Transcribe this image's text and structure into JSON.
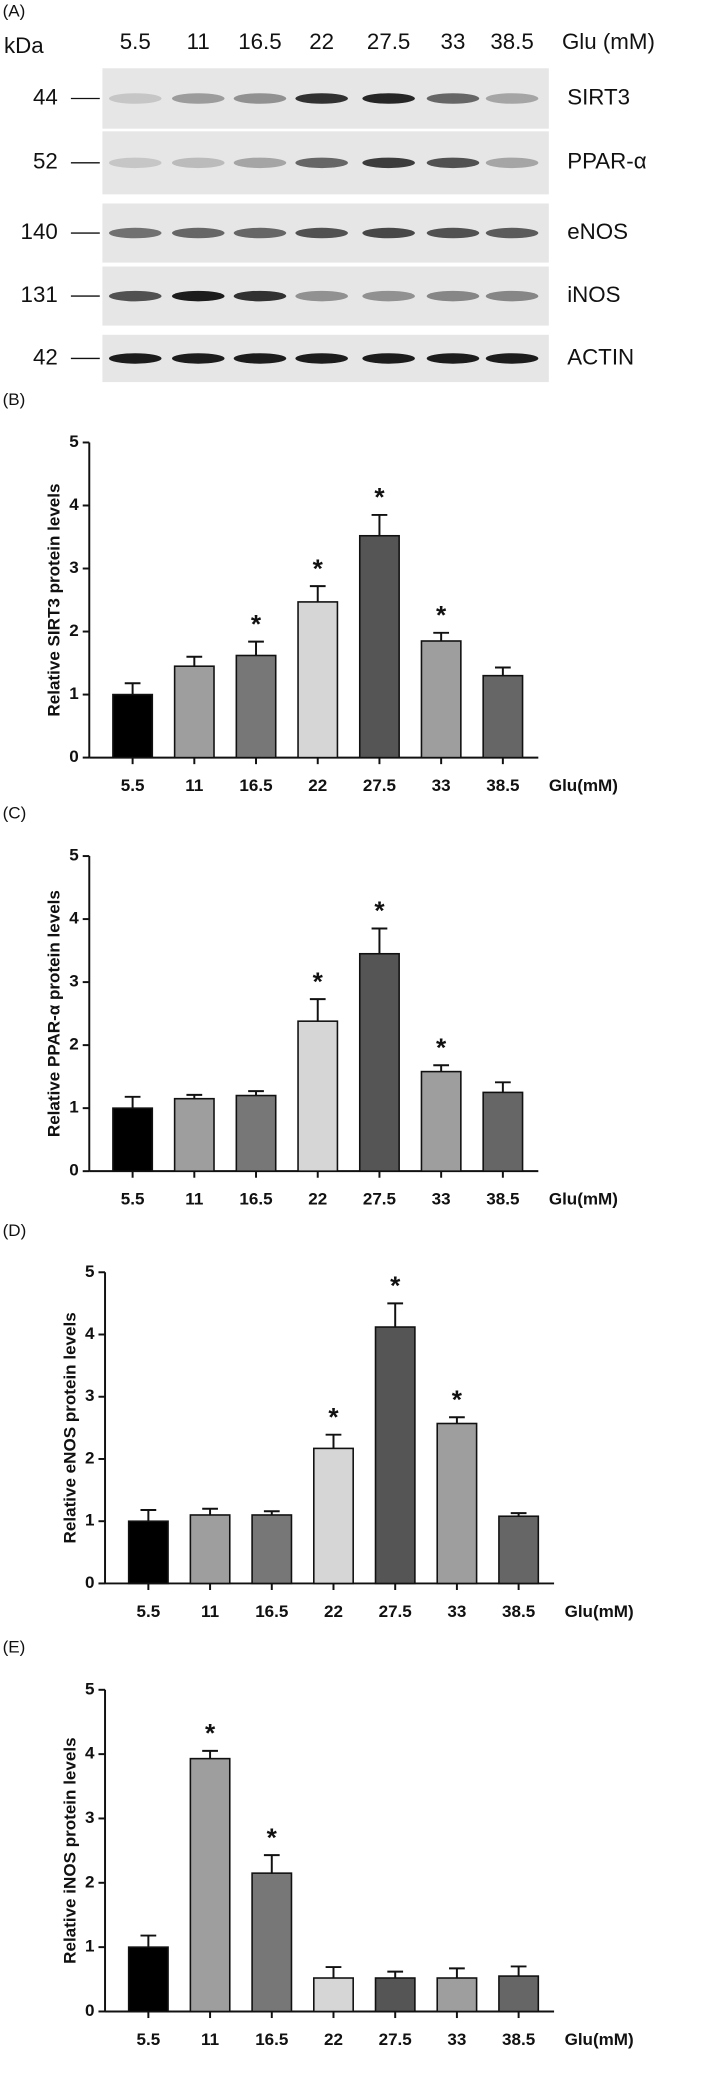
{
  "blot": {
    "label": "(A)",
    "unit": "kDa",
    "lane_title": "Glu (mM)",
    "lanes": [
      "5.5",
      "11",
      "16.5",
      "22",
      "27.5",
      "33",
      "38.5"
    ],
    "rows": [
      {
        "kda": 44,
        "name": "SIRT3"
      },
      {
        "kda": 52,
        "name": "PPAR-α"
      },
      {
        "kda": 140,
        "name": "eNOS"
      },
      {
        "kda": 131,
        "name": "iNOS"
      },
      {
        "kda": 42,
        "name": "ACTIN"
      }
    ]
  },
  "chart_data": [
    {
      "type": "bar",
      "title": "(B)",
      "y_label": "Relative SIRT3 protein levels",
      "x_label": "Glu(mM)",
      "categories": [
        "5.5",
        "11",
        "16.5",
        "22",
        "27.5",
        "33",
        "38.5"
      ],
      "values": [
        1.0,
        1.45,
        1.62,
        2.47,
        3.52,
        1.85,
        1.3
      ],
      "errors": [
        0.18,
        0.15,
        0.22,
        0.25,
        0.33,
        0.13,
        0.13
      ],
      "annotations": [
        null,
        null,
        "*",
        "*",
        "*",
        "*",
        null
      ],
      "colors": [
        "#000000",
        "#9e9e9e",
        "#777777",
        "#d6d6d6",
        "#555555",
        "#9e9e9e",
        "#666666"
      ],
      "ylim": [
        0,
        5
      ],
      "yticks": [
        0,
        1,
        2,
        3,
        4,
        5
      ]
    },
    {
      "type": "bar",
      "title": "(C)",
      "y_label": "Relative PPAR-α protein levels",
      "x_label": "Glu(mM)",
      "categories": [
        "5.5",
        "11",
        "16.5",
        "22",
        "27.5",
        "33",
        "38.5"
      ],
      "values": [
        1.0,
        1.15,
        1.2,
        2.38,
        3.45,
        1.58,
        1.25
      ],
      "errors": [
        0.18,
        0.06,
        0.07,
        0.35,
        0.4,
        0.1,
        0.16
      ],
      "annotations": [
        null,
        null,
        null,
        "*",
        "*",
        "*",
        null
      ],
      "colors": [
        "#000000",
        "#9e9e9e",
        "#777777",
        "#d6d6d6",
        "#555555",
        "#9e9e9e",
        "#666666"
      ],
      "ylim": [
        0,
        5
      ],
      "yticks": [
        0,
        1,
        2,
        3,
        4,
        5
      ]
    },
    {
      "type": "bar",
      "title": "(D)",
      "y_label": "Relative eNOS protein levels",
      "x_label": "Glu(mM)",
      "categories": [
        "5.5",
        "11",
        "16.5",
        "22",
        "27.5",
        "33",
        "38.5"
      ],
      "values": [
        1.0,
        1.1,
        1.1,
        2.17,
        4.12,
        2.57,
        1.08
      ],
      "errors": [
        0.18,
        0.1,
        0.06,
        0.22,
        0.38,
        0.1,
        0.05
      ],
      "annotations": [
        null,
        null,
        null,
        "*",
        "*",
        "*",
        null
      ],
      "colors": [
        "#000000",
        "#9e9e9e",
        "#777777",
        "#d6d6d6",
        "#555555",
        "#9e9e9e",
        "#666666"
      ],
      "ylim": [
        0,
        5
      ],
      "yticks": [
        0,
        1,
        2,
        3,
        4,
        5
      ]
    },
    {
      "type": "bar",
      "title": "(E)",
      "y_label": "Relative iNOS protein levels",
      "x_label": "Glu(mM)",
      "categories": [
        "5.5",
        "11",
        "16.5",
        "22",
        "27.5",
        "33",
        "38.5"
      ],
      "values": [
        1.0,
        3.93,
        2.15,
        0.52,
        0.52,
        0.52,
        0.55
      ],
      "errors": [
        0.18,
        0.12,
        0.28,
        0.17,
        0.1,
        0.15,
        0.15
      ],
      "annotations": [
        null,
        "*",
        "*",
        null,
        null,
        null,
        null
      ],
      "colors": [
        "#000000",
        "#9e9e9e",
        "#777777",
        "#d6d6d6",
        "#555555",
        "#9e9e9e",
        "#666666"
      ],
      "ylim": [
        0,
        5
      ],
      "yticks": [
        0,
        1,
        2,
        3,
        4,
        5
      ]
    }
  ]
}
